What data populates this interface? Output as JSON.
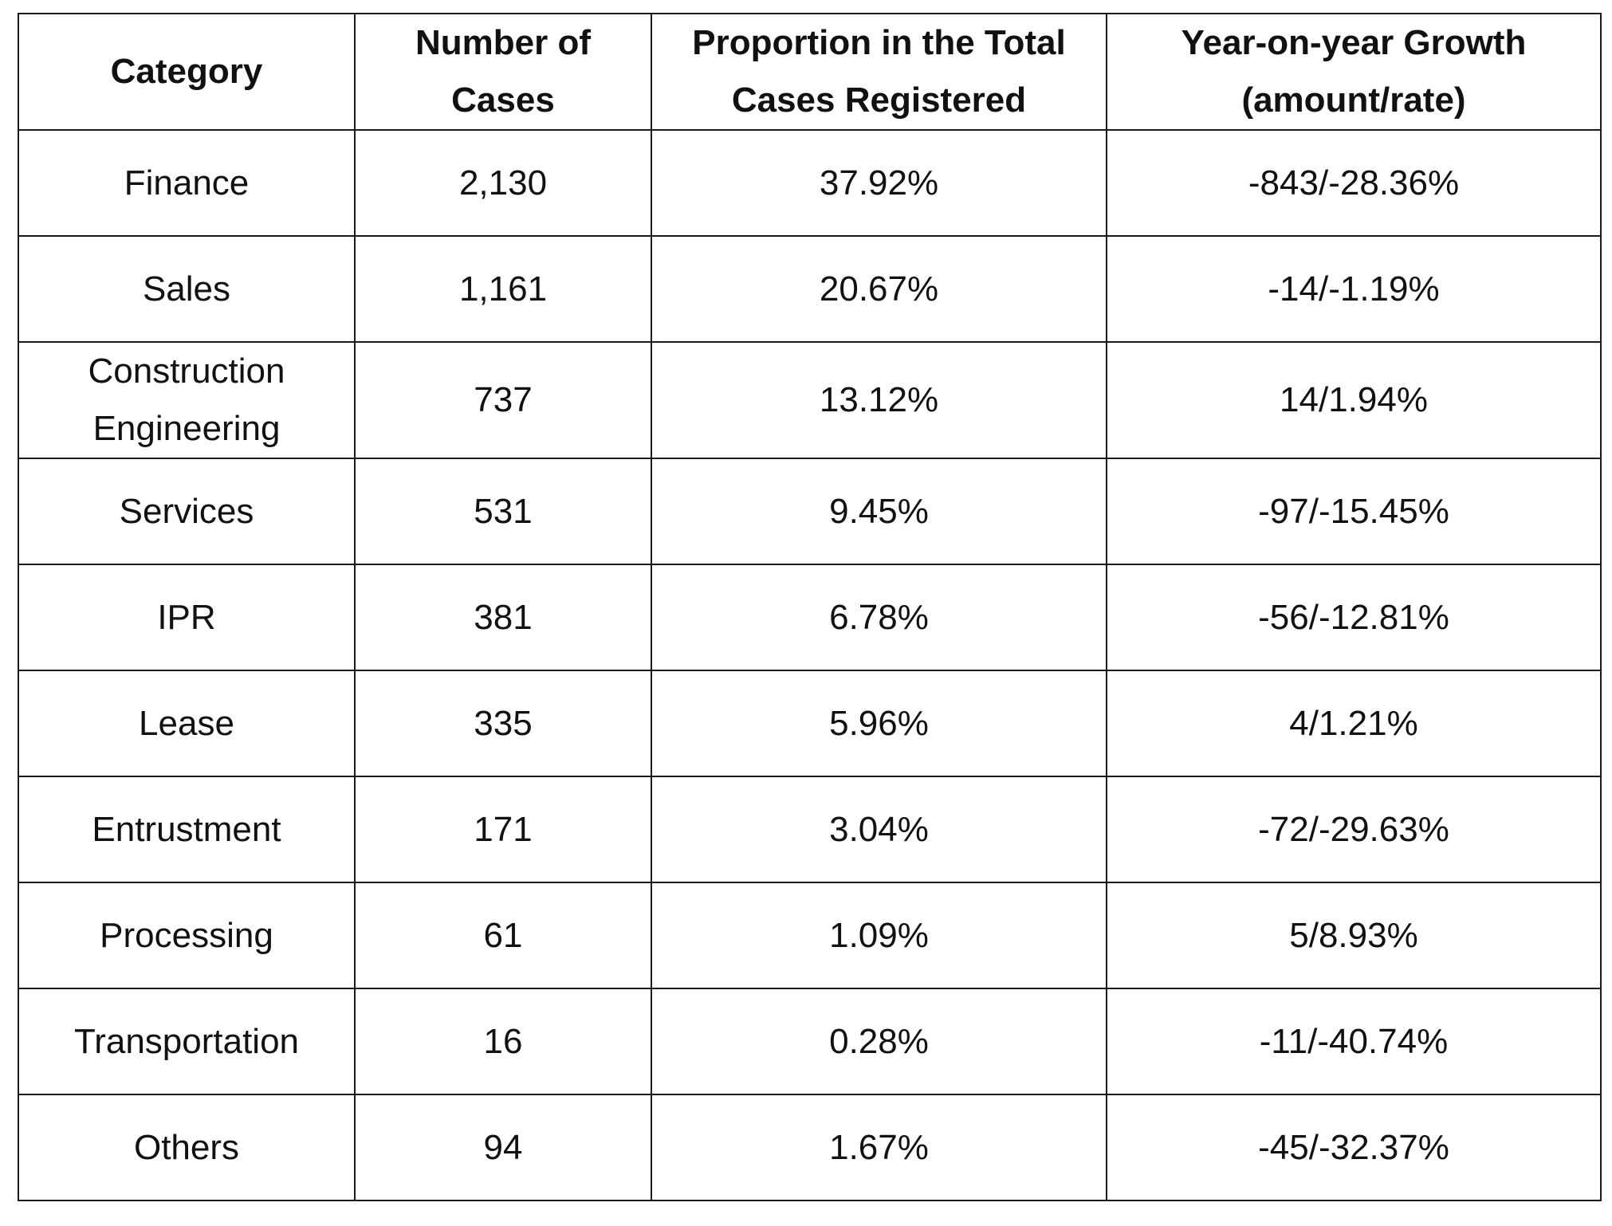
{
  "table": {
    "headers": [
      "Category",
      "Number of Cases",
      "Proportion in the Total Cases Registered",
      "Year-on-year Growth (amount/rate)"
    ],
    "rows": [
      [
        "Finance",
        "2,130",
        "37.92%",
        "-843/-28.36%"
      ],
      [
        "Sales",
        "1,161",
        "20.67%",
        "-14/-1.19%"
      ],
      [
        "Construction Engineering",
        "737",
        "13.12%",
        "14/1.94%"
      ],
      [
        "Services",
        "531",
        "9.45%",
        "-97/-15.45%"
      ],
      [
        "IPR",
        "381",
        "6.78%",
        "-56/-12.81%"
      ],
      [
        "Lease",
        "335",
        "5.96%",
        "4/1.21%"
      ],
      [
        "Entrustment",
        "171",
        "3.04%",
        "-72/-29.63%"
      ],
      [
        "Processing",
        "61",
        "1.09%",
        "5/8.93%"
      ],
      [
        "Transportation",
        "16",
        "0.28%",
        "-11/-40.74%"
      ],
      [
        "Others",
        "94",
        "1.67%",
        "-45/-32.37%"
      ]
    ]
  }
}
